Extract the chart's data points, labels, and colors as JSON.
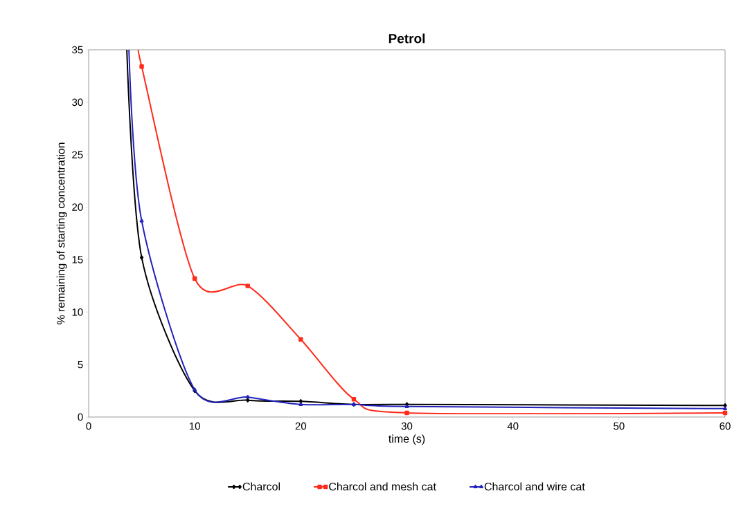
{
  "chart_data": {
    "type": "line",
    "title": "Petrol",
    "xlabel": "time (s)",
    "ylabel": "% remaining of starting concentration",
    "xlim": [
      0,
      60
    ],
    "xticks": [
      0,
      10,
      20,
      30,
      40,
      50,
      60
    ],
    "ylim": [
      0,
      35
    ],
    "yticks": [
      0,
      5,
      10,
      15,
      20,
      25,
      30,
      35
    ],
    "grid": false,
    "legend": "bottom",
    "line_style": "solid",
    "series": [
      {
        "name": "Charcol",
        "color": "#000000",
        "marker": "diamond",
        "x": [
          3.6,
          5,
          10,
          15,
          20,
          25,
          30,
          60
        ],
        "values": [
          35,
          15.2,
          2.5,
          1.6,
          1.5,
          1.2,
          1.2,
          1.1
        ]
      },
      {
        "name": "Charcol and mesh cat",
        "color": "#ff2a1a",
        "marker": "square",
        "x": [
          4.8,
          5,
          10,
          15,
          20,
          25,
          30,
          60
        ],
        "values": [
          35,
          33.4,
          13.2,
          12.5,
          7.4,
          1.7,
          0.4,
          0.4
        ]
      },
      {
        "name": "Charcol and wire cat",
        "color": "#2222bb",
        "marker": "triangle",
        "x": [
          3.8,
          5,
          10,
          15,
          20,
          25,
          30,
          60
        ],
        "values": [
          35,
          18.7,
          2.6,
          1.9,
          1.2,
          1.2,
          1.0,
          0.8
        ]
      }
    ]
  }
}
